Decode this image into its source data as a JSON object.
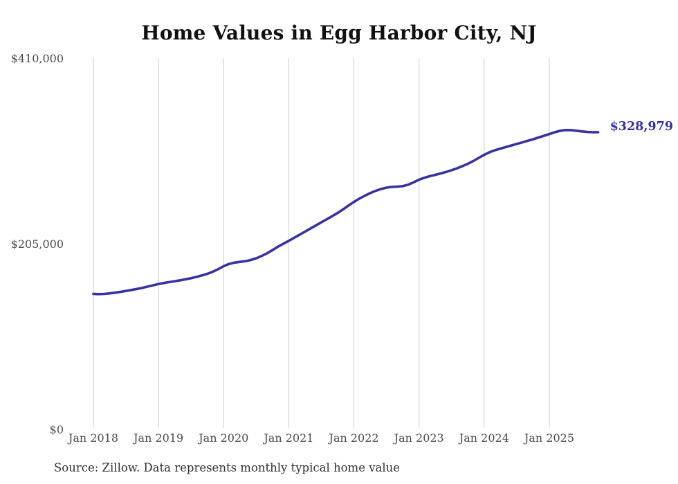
{
  "chart": {
    "source_note": "Source: Zillow. Data represents monthly typical home value",
    "colors": {
      "background": "#ffffff",
      "line": "#37329f",
      "last_value_label": "#32309f",
      "gridline": "#cccccc",
      "axis_label": "#4a4a4a",
      "title": "#111111",
      "source": "#303030"
    }
  },
  "chart_data": {
    "type": "line",
    "title": "Home Values in Egg Harbor City, NJ",
    "series_name": "Monthly typical home value",
    "last_value_label": "$328,979",
    "last_value": 328979,
    "ylim": [
      0,
      410000
    ],
    "grid": "vertical-only",
    "legend": "none",
    "x_tick_labels": [
      "Jan 2018",
      "Jan 2019",
      "Jan 2020",
      "Jan 2021",
      "Jan 2022",
      "Jan 2023",
      "Jan 2024",
      "Jan 2025"
    ],
    "y_ticks": [
      {
        "label": "$410,000",
        "value": 410000
      },
      {
        "label": "$205,000",
        "value": 205000
      },
      {
        "label": "$0",
        "value": 0
      }
    ],
    "x": [
      "2018-01",
      "2018-02",
      "2018-03",
      "2018-04",
      "2018-05",
      "2018-06",
      "2018-07",
      "2018-08",
      "2018-09",
      "2018-10",
      "2018-11",
      "2018-12",
      "2019-01",
      "2019-02",
      "2019-03",
      "2019-04",
      "2019-05",
      "2019-06",
      "2019-07",
      "2019-08",
      "2019-09",
      "2019-10",
      "2019-11",
      "2019-12",
      "2020-01",
      "2020-02",
      "2020-03",
      "2020-04",
      "2020-05",
      "2020-06",
      "2020-07",
      "2020-08",
      "2020-09",
      "2020-10",
      "2020-11",
      "2020-12",
      "2021-01",
      "2021-02",
      "2021-03",
      "2021-04",
      "2021-05",
      "2021-06",
      "2021-07",
      "2021-08",
      "2021-09",
      "2021-10",
      "2021-11",
      "2021-12",
      "2022-01",
      "2022-02",
      "2022-03",
      "2022-04",
      "2022-05",
      "2022-06",
      "2022-07",
      "2022-08",
      "2022-09",
      "2022-10",
      "2022-11",
      "2022-12",
      "2023-01",
      "2023-02",
      "2023-03",
      "2023-04",
      "2023-05",
      "2023-06",
      "2023-07",
      "2023-08",
      "2023-09",
      "2023-10",
      "2023-11",
      "2023-12",
      "2024-01",
      "2024-02",
      "2024-03",
      "2024-04",
      "2024-05",
      "2024-06",
      "2024-07",
      "2024-08",
      "2024-09",
      "2024-10",
      "2024-11",
      "2024-12",
      "2025-01",
      "2025-02",
      "2025-03",
      "2025-04",
      "2025-05",
      "2025-06",
      "2025-07",
      "2025-08",
      "2025-09",
      "2025-10"
    ],
    "y": [
      150400,
      150100,
      150300,
      150900,
      151700,
      152600,
      153600,
      154700,
      155800,
      157000,
      158400,
      159800,
      161300,
      162400,
      163400,
      164400,
      165400,
      166500,
      167700,
      169100,
      170700,
      172600,
      174900,
      177700,
      181000,
      183400,
      184900,
      185700,
      186500,
      187800,
      189700,
      192200,
      195200,
      198700,
      202500,
      205800,
      209000,
      212400,
      215800,
      219200,
      222600,
      226000,
      229400,
      232800,
      236200,
      239700,
      243700,
      247900,
      252000,
      255600,
      258800,
      261700,
      264200,
      266200,
      267700,
      268600,
      268900,
      269400,
      271000,
      273600,
      276500,
      278700,
      280400,
      281900,
      283400,
      285100,
      287000,
      289100,
      291500,
      294100,
      297200,
      300600,
      304000,
      306900,
      309100,
      310900,
      312600,
      314300,
      316000,
      317700,
      319400,
      321200,
      323100,
      325000,
      326900,
      328900,
      330500,
      331400,
      331300,
      330600,
      329800,
      329200,
      328900,
      328979
    ]
  }
}
